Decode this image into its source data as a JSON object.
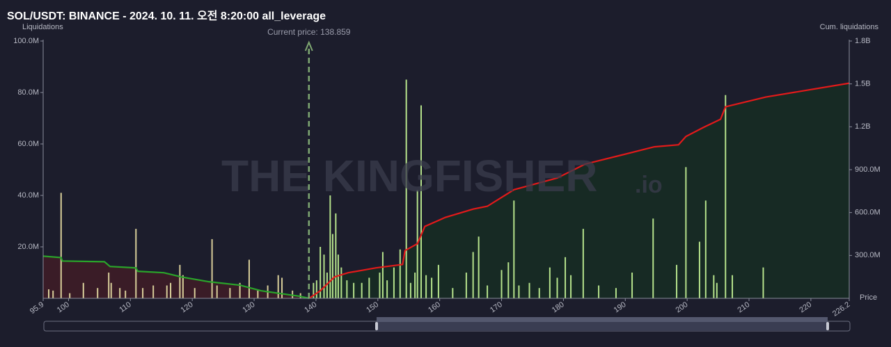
{
  "chart_data": {
    "type": "bar",
    "title": "SOL/USDT: BINANCE - 2024. 10. 11. 오전 8:20:00 all_leverage",
    "y_label": "Liquidations",
    "y2_label": "Cum. liquidations",
    "x_label": "Price",
    "watermark": "THE KINGFISHER",
    "watermark_suffix": ".io",
    "annotation": {
      "text": "Current price: 138.859",
      "value": 138.859
    },
    "xlim": [
      95.9,
      226.2
    ],
    "xticks": [
      95.9,
      100,
      110,
      120,
      130,
      140,
      150,
      160,
      170,
      180,
      190,
      200,
      210,
      220,
      226.2
    ],
    "ylim": [
      0,
      100000000
    ],
    "yticks": [
      {
        "value": 20000000,
        "label": "20.0M"
      },
      {
        "value": 40000000,
        "label": "40.0M"
      },
      {
        "value": 60000000,
        "label": "60.0M"
      },
      {
        "value": 80000000,
        "label": "80.0M"
      },
      {
        "value": 100000000,
        "label": "100.0M"
      }
    ],
    "y2lim": [
      0,
      1800000000
    ],
    "y2ticks": [
      {
        "value": 300000000,
        "label": "300.0M"
      },
      {
        "value": 600000000,
        "label": "600.0M"
      },
      {
        "value": 900000000,
        "label": "900.0M"
      },
      {
        "value": 1200000000,
        "label": "1.2B"
      },
      {
        "value": 1500000000,
        "label": "1.5B"
      },
      {
        "value": 1800000000,
        "label": "1.8B"
      }
    ],
    "series": [
      {
        "kind": "bar",
        "color": "#d9cf9a",
        "x": [
          96.8,
          97.5,
          98.8,
          100.2,
          102.4,
          104.7,
          106.5,
          106.9,
          108.3,
          109.2,
          110.9,
          112.0,
          113.7,
          115.9,
          116.5,
          118.0,
          118.5,
          120.4,
          123.2,
          124.0,
          126.1,
          127.7,
          129.2,
          130.6,
          132.2,
          133.9,
          134.5,
          136.2,
          137.5
        ],
        "values": [
          3500000,
          3000000,
          41000000,
          2000000,
          6000000,
          4000000,
          10000000,
          6000000,
          4000000,
          3000000,
          27000000,
          4000000,
          5000000,
          5000000,
          6000000,
          13000000,
          9000000,
          4000000,
          23000000,
          5000000,
          4000000,
          6000000,
          15000000,
          3000000,
          5000000,
          9000000,
          8000000,
          3000000,
          2000000
        ]
      },
      {
        "kind": "bar",
        "color": "#b6e38c",
        "x": [
          139.6,
          140.1,
          140.7,
          141.3,
          141.8,
          142.3,
          142.7,
          143.2,
          143.6,
          144.1,
          145.0,
          146.1,
          147.4,
          148.6,
          150.3,
          150.8,
          151.5,
          152.6,
          153.6,
          154.6,
          155.3,
          156.0,
          156.4,
          157.0,
          157.8,
          158.7,
          159.8,
          162.1,
          164.3,
          165.4,
          166.3,
          167.7,
          170.0,
          171.1,
          172.0,
          172.8,
          174.5,
          176.1,
          177.8,
          179.0,
          180.3,
          181.2,
          183.2,
          185.7,
          188.5,
          191.1,
          194.5,
          198.3,
          199.8,
          202.0,
          203.0,
          204.3,
          204.8,
          206.2,
          207.3,
          212.3
        ],
        "values": [
          6000000,
          7000000,
          20000000,
          17000000,
          10000000,
          40000000,
          25000000,
          33000000,
          17000000,
          12000000,
          7000000,
          6000000,
          6000000,
          8000000,
          10000000,
          18000000,
          7000000,
          12000000,
          19000000,
          85000000,
          6000000,
          10000000,
          42000000,
          75000000,
          9000000,
          8000000,
          13000000,
          4000000,
          10000000,
          18000000,
          24000000,
          5000000,
          11000000,
          14000000,
          38000000,
          5000000,
          6000000,
          4000000,
          12000000,
          8000000,
          16000000,
          9000000,
          27000000,
          5000000,
          4000000,
          10000000,
          31000000,
          13000000,
          51000000,
          22000000,
          38000000,
          9000000,
          6000000,
          79000000,
          9000000,
          12000000
        ]
      },
      {
        "kind": "line",
        "axis": "y2",
        "color": "#2aa52a",
        "fill": "#3a1c27",
        "x": [
          95.9,
          98.8,
          99.0,
          105.8,
          106.7,
          110.9,
          111.2,
          115.4,
          118.2,
          122.7,
          127.7,
          131.1,
          137.3,
          138.9
        ],
        "values": [
          295000000,
          285000000,
          261000000,
          256000000,
          223000000,
          213000000,
          189000000,
          179000000,
          150000000,
          116000000,
          92000000,
          53000000,
          15000000,
          0
        ]
      },
      {
        "kind": "line",
        "axis": "y2",
        "color": "#e31a1a",
        "fill": "#172a24",
        "x": [
          138.9,
          140.7,
          143.0,
          145.2,
          149.7,
          154.0,
          154.4,
          156.4,
          157.6,
          160.9,
          165.4,
          167.7,
          172.0,
          179.0,
          183.5,
          190.2,
          194.7,
          198.6,
          199.8,
          202.6,
          205.4,
          206.2,
          212.7,
          226.2
        ],
        "values": [
          0,
          53000000,
          150000000,
          179000000,
          213000000,
          237000000,
          334000000,
          382000000,
          503000000,
          566000000,
          624000000,
          644000000,
          760000000,
          842000000,
          939000000,
          1011000000,
          1060000000,
          1074000000,
          1132000000,
          1195000000,
          1253000000,
          1340000000,
          1408000000,
          1505000000
        ]
      }
    ]
  }
}
